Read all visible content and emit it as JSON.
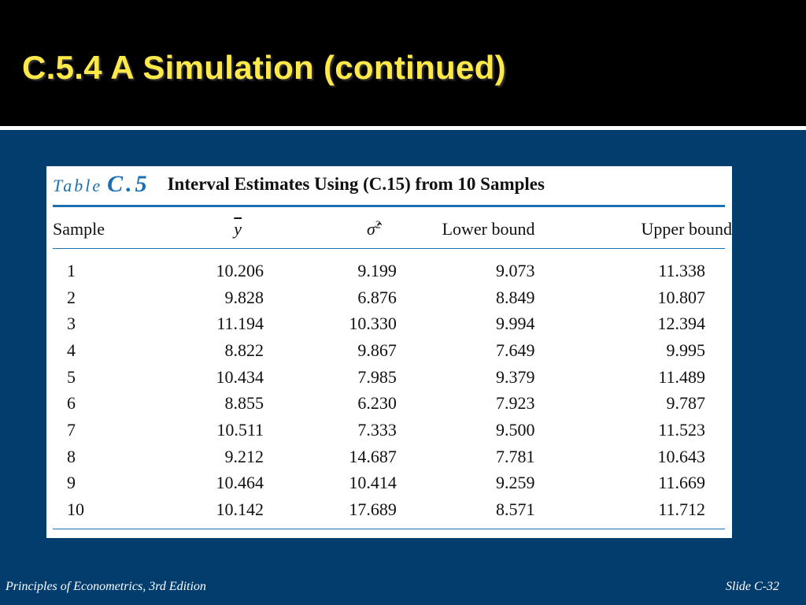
{
  "slide": {
    "title": "C.5.4 A Simulation (continued)",
    "footer_left": "Principles of Econometrics, 3rd Edition",
    "footer_right": "Slide C-32",
    "colors": {
      "title_bar": "#000000",
      "title_text": "#ffe94a",
      "background": "#023d6e",
      "table_accent": "#1b6fb3"
    }
  },
  "table": {
    "caption_word": "Table",
    "caption_number": "C.5",
    "caption_text": "Interval Estimates Using (C.15) from 10 Samples",
    "headers": {
      "sample": "Sample",
      "ybar": "y",
      "sigma_hat_sq": "σ̂",
      "sigma_exp": "2",
      "lower": "Lower bound",
      "upper": "Upper bound"
    },
    "rows": [
      {
        "sample": "1",
        "ybar": "10.206",
        "sigma2": "9.199",
        "lower": "9.073",
        "upper": "11.338"
      },
      {
        "sample": "2",
        "ybar": "9.828",
        "sigma2": "6.876",
        "lower": "8.849",
        "upper": "10.807"
      },
      {
        "sample": "3",
        "ybar": "11.194",
        "sigma2": "10.330",
        "lower": "9.994",
        "upper": "12.394"
      },
      {
        "sample": "4",
        "ybar": "8.822",
        "sigma2": "9.867",
        "lower": "7.649",
        "upper": "9.995"
      },
      {
        "sample": "5",
        "ybar": "10.434",
        "sigma2": "7.985",
        "lower": "9.379",
        "upper": "11.489"
      },
      {
        "sample": "6",
        "ybar": "8.855",
        "sigma2": "6.230",
        "lower": "7.923",
        "upper": "9.787"
      },
      {
        "sample": "7",
        "ybar": "10.511",
        "sigma2": "7.333",
        "lower": "9.500",
        "upper": "11.523"
      },
      {
        "sample": "8",
        "ybar": "9.212",
        "sigma2": "14.687",
        "lower": "7.781",
        "upper": "10.643"
      },
      {
        "sample": "9",
        "ybar": "10.464",
        "sigma2": "10.414",
        "lower": "9.259",
        "upper": "11.669"
      },
      {
        "sample": "10",
        "ybar": "10.142",
        "sigma2": "17.689",
        "lower": "8.571",
        "upper": "11.712"
      }
    ]
  }
}
